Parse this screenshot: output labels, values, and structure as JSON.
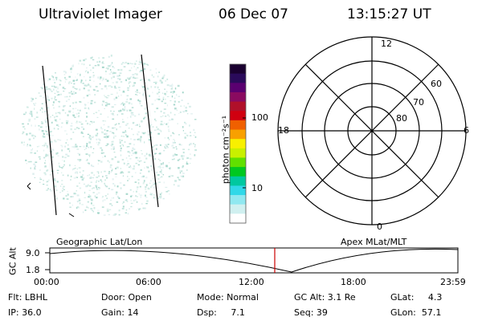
{
  "header": {
    "instrument": "Ultraviolet Imager",
    "date": "06 Dec 07",
    "time": "13:15:27 UT"
  },
  "colorbar": {
    "label": "photon cm⁻²s⁻¹",
    "ticks": [
      "100",
      "10"
    ],
    "colors": [
      "#1a0030",
      "#2a0a5a",
      "#5a0070",
      "#8a0a60",
      "#b0102a",
      "#d00010",
      "#f06000",
      "#f8a000",
      "#f8f000",
      "#c8f000",
      "#60e000",
      "#00c820",
      "#00c8a0",
      "#30d8e8",
      "#90e8f0",
      "#d0f0f0",
      "#ffffff"
    ]
  },
  "polar": {
    "mlt_labels": {
      "top": "12",
      "left": "18",
      "right": "6",
      "bottom": "0"
    },
    "lat_labels": [
      "60",
      "70",
      "80"
    ]
  },
  "timeline": {
    "left_title": "Geographic Lat/Lon",
    "right_title": "Apex  MLat/MLT",
    "axis_label": "GC Alt",
    "y_ticks": [
      "9.0",
      "1.8"
    ],
    "x_ticks": [
      "00:00",
      "06:00",
      "12:00",
      "18:00",
      "23:59"
    ],
    "marker_color": "#cc0000"
  },
  "status": {
    "flt": "Flt: LBHL",
    "ip": "IP: 36.0",
    "door": "Door: Open",
    "gain": "Gain: 14",
    "mode": "Mode: Normal",
    "dsp": "Dsp:     7.1",
    "gcalt": "GC Alt: 3.1 Re",
    "seq": "Seq: 39",
    "glat": "GLat:     4.3",
    "glon": "GLon:  57.1"
  }
}
